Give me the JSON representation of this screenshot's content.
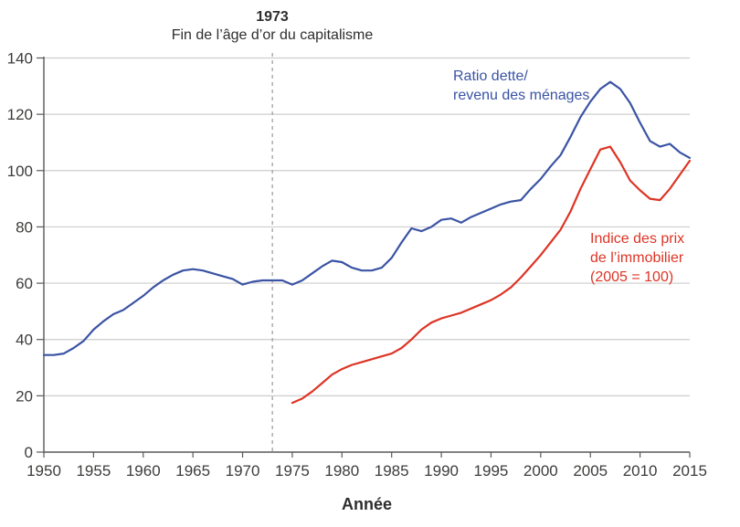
{
  "figure": {
    "annotation_year": "1973",
    "annotation_caption": "Fin de l’âge d’or du capitalisme",
    "xlabel": "Année",
    "debt_label_line1": "Ratio dette/",
    "debt_label_line2": "revenu des ménages",
    "house_label_line1": "Indice des prix",
    "house_label_line2": "de l’immobilier",
    "house_label_line3": "(2005 = 100)"
  },
  "colors": {
    "debt_line": "#3a53a4",
    "house_line": "#dd3425",
    "grid": "#cdcdcd",
    "axis": "#59595b",
    "dashed_vline": "#a6a6a6",
    "tick_text": "#3c3c3b"
  },
  "chart_data": {
    "type": "line",
    "title": "",
    "xlabel": "Année",
    "ylabel": "",
    "xlim": [
      1950,
      2015
    ],
    "ylim": [
      0,
      140
    ],
    "x_ticks": [
      1950,
      1955,
      1960,
      1965,
      1970,
      1975,
      1980,
      1985,
      1990,
      1995,
      2000,
      2005,
      2010,
      2015
    ],
    "y_ticks": [
      0,
      20,
      40,
      60,
      80,
      100,
      120,
      140
    ],
    "grid": "horizontal",
    "legend_position": "inline-labels",
    "annotation_vline": {
      "x": 1973,
      "style": "dashed",
      "line1": "1973",
      "line2": "Fin de l’âge d’or du capitalisme"
    },
    "series": [
      {
        "id": "debt-ratio-line",
        "name": "Ratio dette/revenu des ménages",
        "color": "#3a53a4",
        "x_start": 1950,
        "x_step": 1,
        "values": [
          34.5,
          34.5,
          35,
          37,
          39.5,
          43.5,
          46.5,
          49,
          50.5,
          53,
          55.5,
          58.5,
          61,
          63,
          64.5,
          65,
          64.5,
          63.5,
          62.5,
          61.5,
          59.5,
          60.5,
          61,
          61,
          61,
          59.5,
          61,
          63.5,
          66,
          68,
          67.5,
          65.5,
          64.5,
          64.5,
          65.5,
          69,
          74.5,
          79.5,
          78.5,
          80,
          82.5,
          83,
          81.5,
          83.5,
          85,
          86.5,
          88,
          89,
          89.5,
          93.5,
          97,
          101.5,
          105.5,
          112,
          119,
          124.5,
          129,
          131.5,
          129,
          124,
          117,
          110.5,
          108.5,
          109.5,
          106.5,
          104.5
        ]
      },
      {
        "id": "house-price-line",
        "name": "Indice des prix de l’immobilier (2005 = 100)",
        "color": "#dd3425",
        "x_start": 1975,
        "x_step": 1,
        "values": [
          17.5,
          19,
          21.5,
          24.5,
          27.5,
          29.5,
          31,
          32,
          33,
          34,
          35,
          37,
          40,
          43.5,
          46,
          47.5,
          48.5,
          49.5,
          51,
          52.5,
          54,
          56,
          58.5,
          62,
          66,
          70,
          74.5,
          79,
          85.5,
          93.5,
          100.5,
          107.5,
          108.5,
          103,
          96.5,
          93,
          90,
          89.5,
          93.5,
          98.5,
          103.5
        ]
      }
    ]
  }
}
